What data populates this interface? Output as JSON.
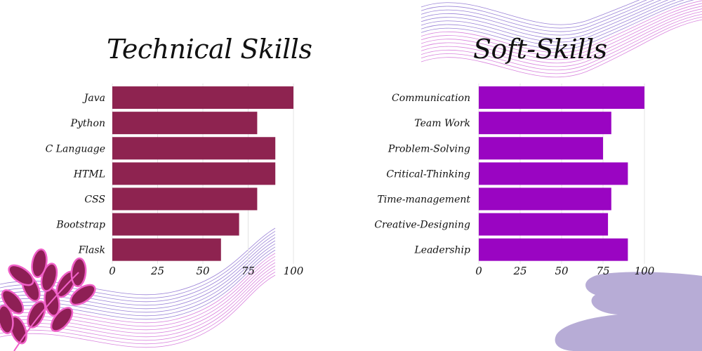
{
  "colors": {
    "technical_bar": "#8E2350",
    "soft_bar": "#9A05C2",
    "wave_purple": "#8A6CD0",
    "wave_pink": "#D26FD8",
    "blob": "#B7ACD6",
    "leaf_dark": "#8E1F55",
    "leaf_pink": "#F060C8"
  },
  "chart_data": [
    {
      "type": "bar",
      "orientation": "horizontal",
      "title": "Technical Skills",
      "xlabel": "",
      "ylabel": "",
      "categories": [
        "Java",
        "Python",
        "C Language",
        "HTML",
        "CSS",
        "Bootstrap",
        "Flask"
      ],
      "values": [
        100,
        80,
        90,
        90,
        80,
        70,
        60
      ],
      "xlim": [
        0,
        100
      ],
      "xticks": [
        0,
        25,
        50,
        75,
        100
      ],
      "grid": true,
      "legend": "none"
    },
    {
      "type": "bar",
      "orientation": "horizontal",
      "title": "Soft-Skills",
      "xlabel": "",
      "ylabel": "",
      "categories": [
        "Communication",
        "Team Work",
        "Problem-Solving",
        "Critical-Thinking",
        "Time-management",
        "Creative-Designing",
        "Leadership"
      ],
      "values": [
        100,
        80,
        75,
        90,
        80,
        78,
        90
      ],
      "xlim": [
        0,
        100
      ],
      "xticks": [
        0,
        25,
        50,
        75,
        100
      ],
      "grid": true,
      "legend": "none"
    }
  ]
}
